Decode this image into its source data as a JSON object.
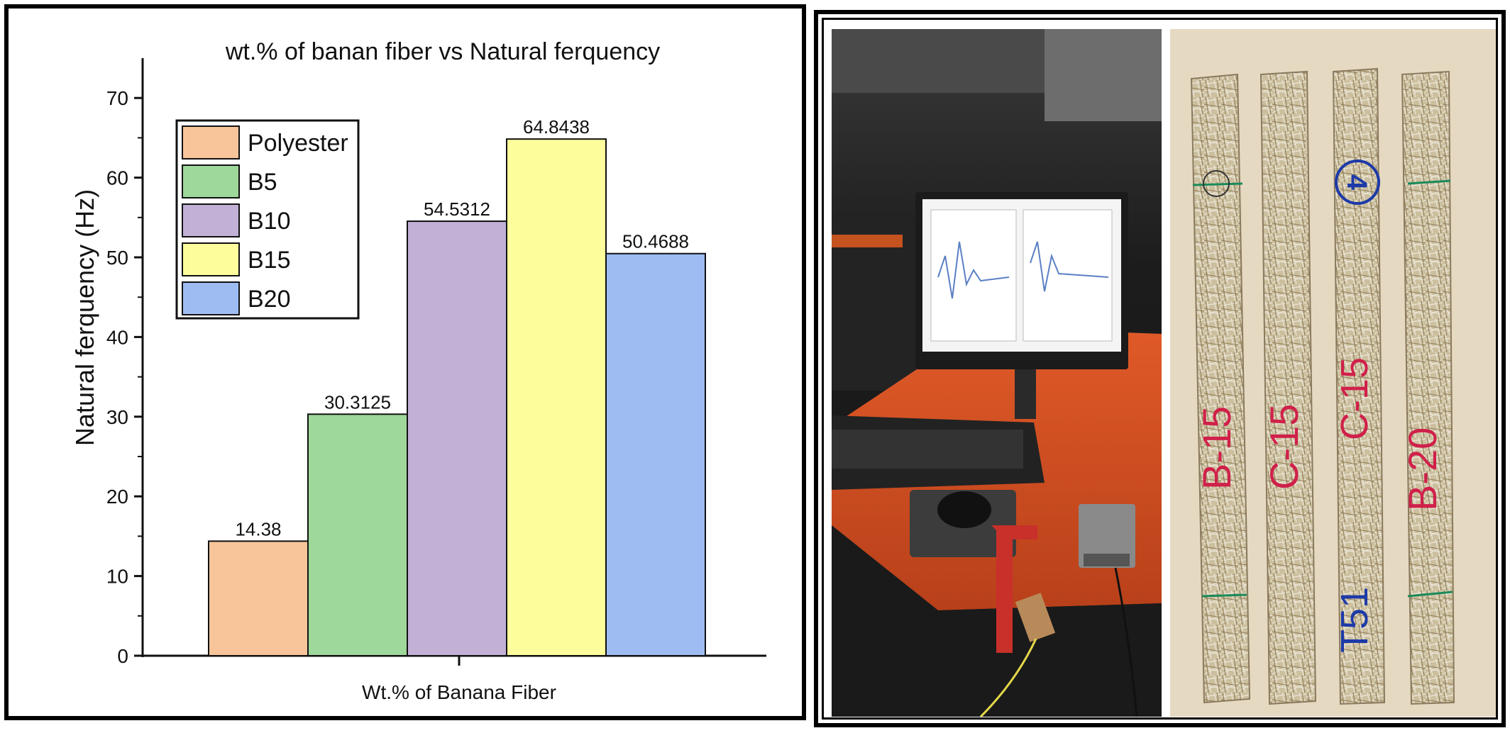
{
  "chart_data": {
    "type": "bar",
    "title": "wt.% of banan fiber vs Natural ferquency",
    "xlabel": "Wt.% of Banana Fiber",
    "ylabel": "Natural ferquency (Hz)",
    "ylim": [
      0,
      75
    ],
    "yticks": [
      0,
      10,
      20,
      30,
      40,
      50,
      60,
      70
    ],
    "grid": false,
    "legend_position": "top-left",
    "series": [
      {
        "name": "Polyester",
        "value": 14.38,
        "label": "14.38",
        "color": "#f8c59a"
      },
      {
        "name": "B5",
        "value": 30.3125,
        "label": "30.3125",
        "color": "#9ed89a"
      },
      {
        "name": "B10",
        "value": 54.5312,
        "label": "54.5312",
        "color": "#c2b0d6"
      },
      {
        "name": "B15",
        "value": 64.8438,
        "label": "64.8438",
        "color": "#fdfd9c"
      },
      {
        "name": "B20",
        "value": 50.4688,
        "label": "50.4688",
        "color": "#9fbcf2"
      }
    ]
  },
  "photos": {
    "strip_marks": [
      "B-15",
      "C-15",
      "C-15",
      "B-20"
    ],
    "circled_number": "4",
    "blue_text": "T51"
  }
}
